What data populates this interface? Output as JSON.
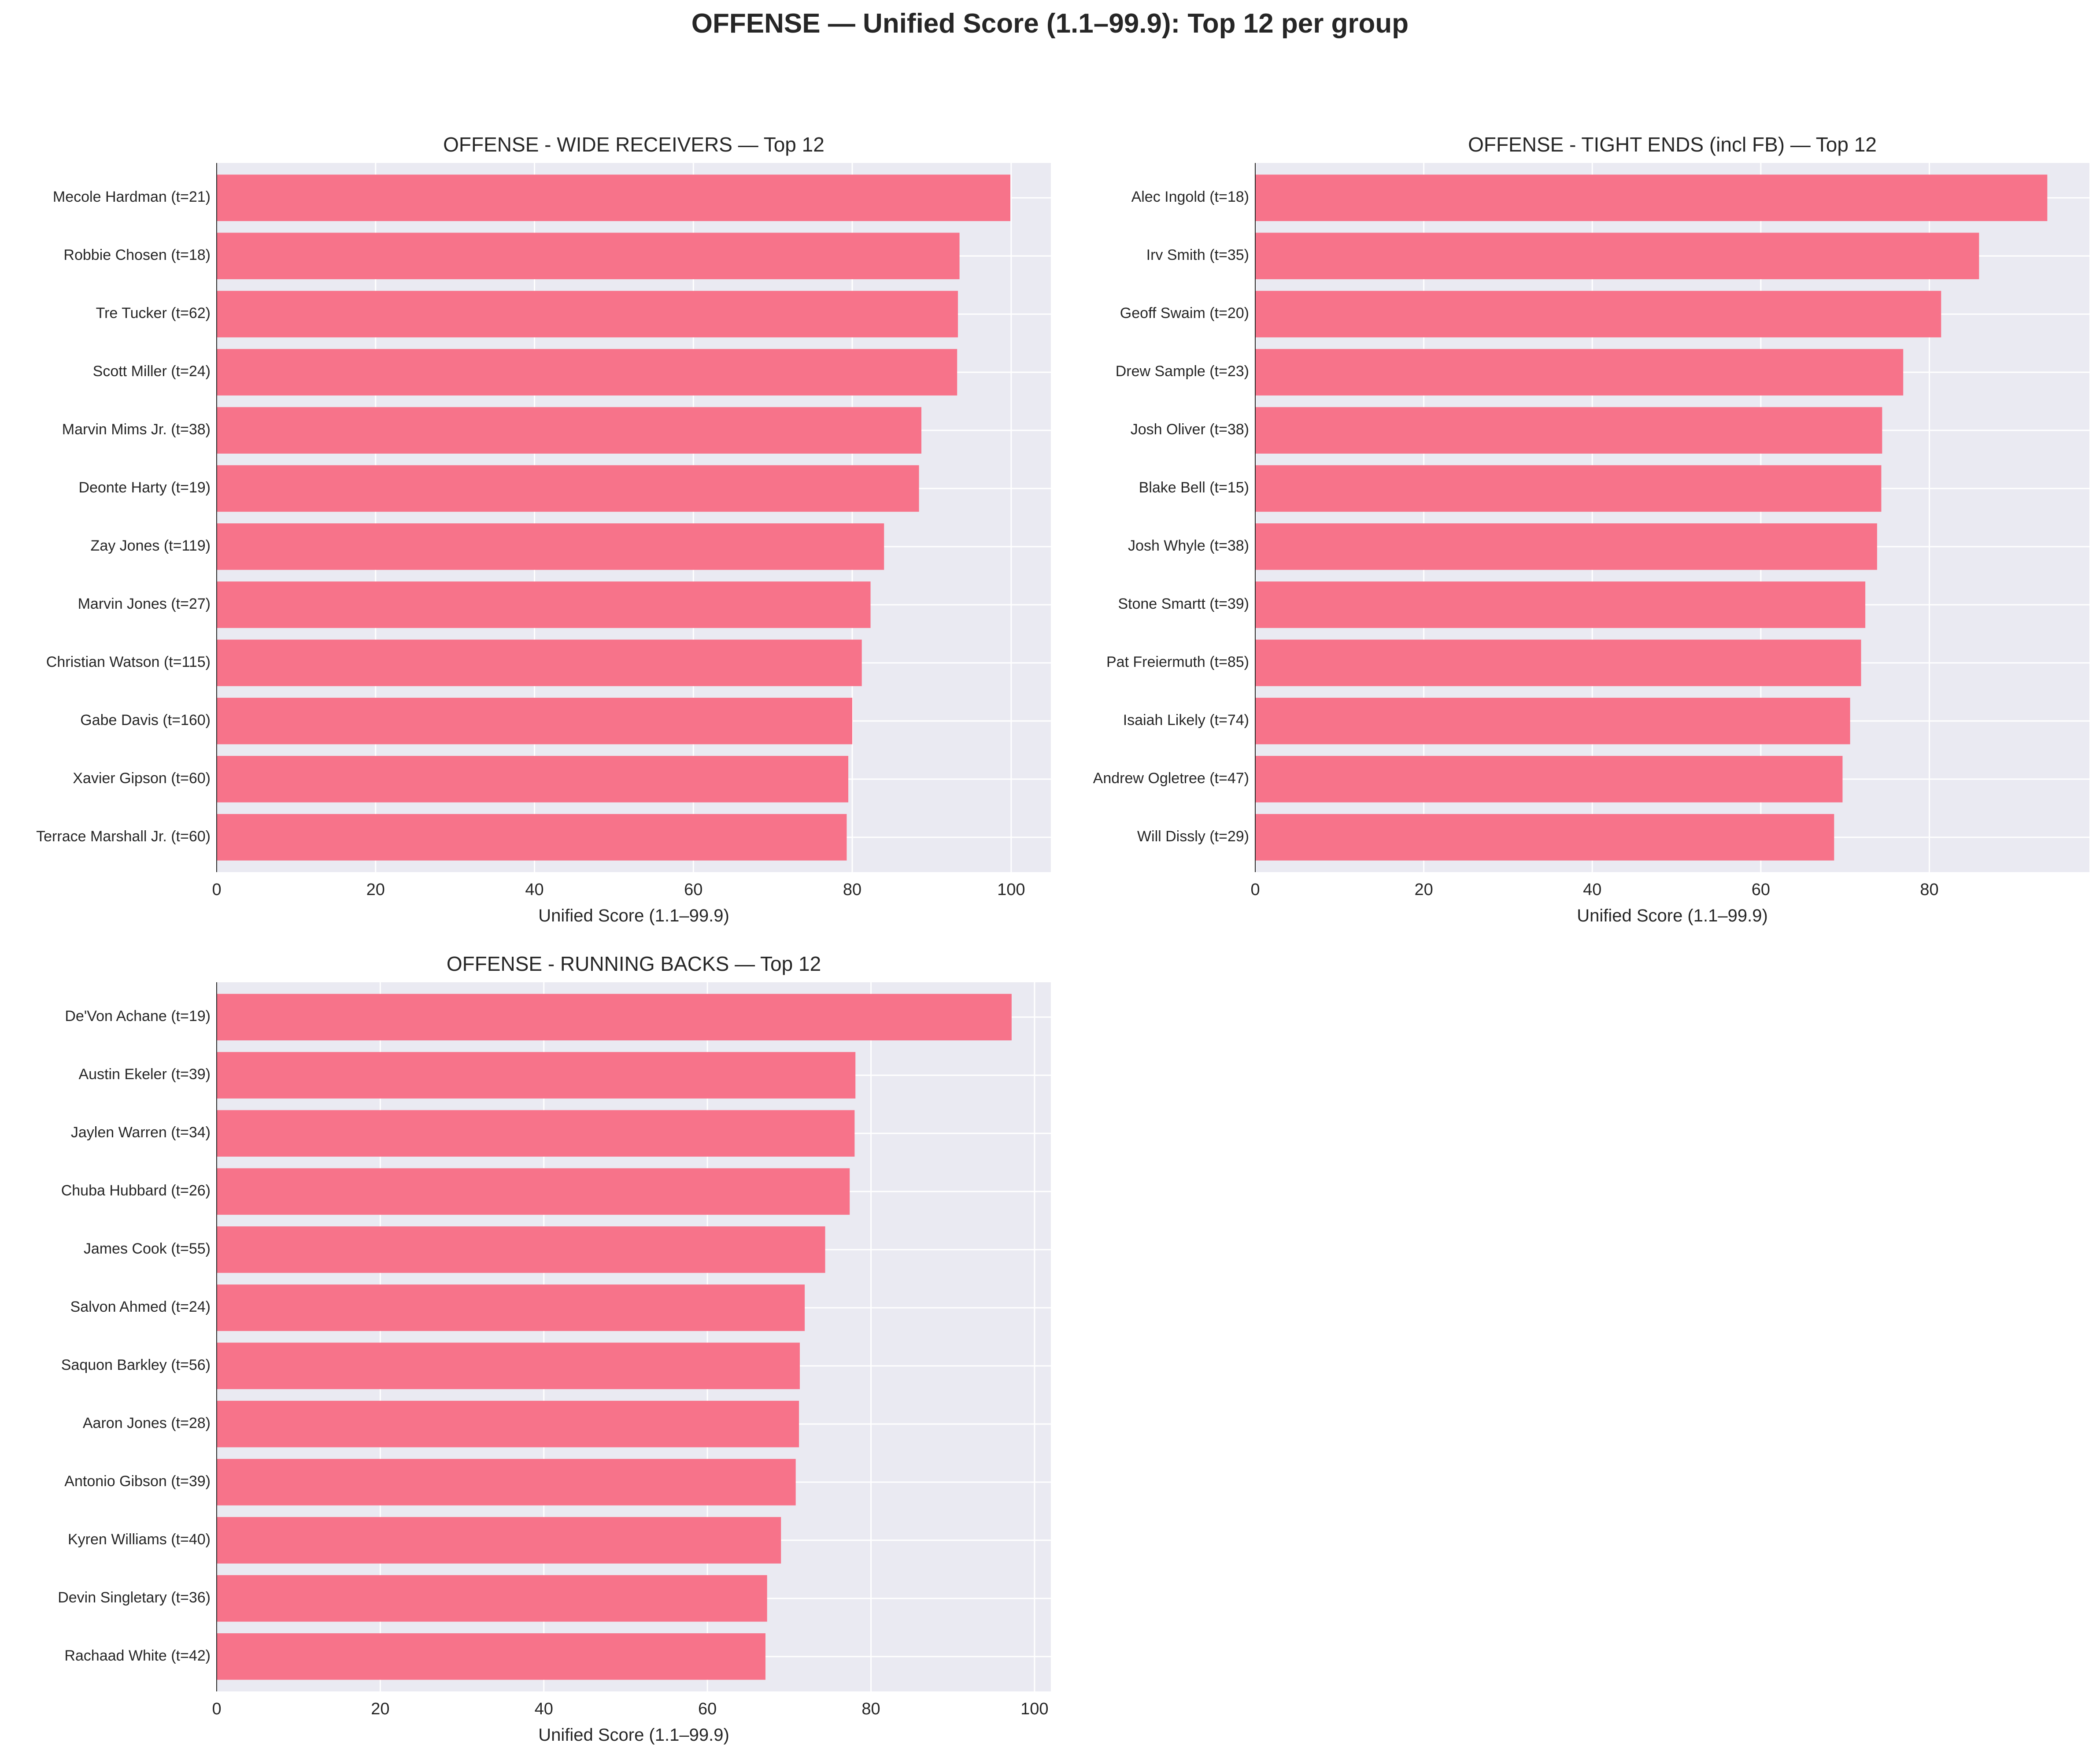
{
  "suptitle": "OFFENSE — Unified Score (1.1–99.9): Top 12 per group",
  "bar_color": "#f7738a",
  "plot_bg": "#eaeaf2",
  "chart_data": [
    {
      "type": "bar",
      "orientation": "horizontal",
      "title": "OFFENSE - WIDE RECEIVERS — Top 12",
      "xlabel": "Unified Score (1.1–99.9)",
      "xlim": [
        0,
        105
      ],
      "xticks": [
        0,
        20,
        40,
        60,
        80,
        100
      ],
      "categories": [
        "Mecole Hardman  (t=21)",
        "Robbie Chosen  (t=18)",
        "Tre Tucker  (t=62)",
        "Scott Miller  (t=24)",
        "Marvin Mims Jr.  (t=38)",
        "Deonte Harty  (t=19)",
        "Zay Jones  (t=119)",
        "Marvin Jones  (t=27)",
        "Christian Watson  (t=115)",
        "Gabe Davis  (t=160)",
        "Xavier Gipson  (t=60)",
        "Terrace Marshall Jr.  (t=60)"
      ],
      "values": [
        99.9,
        93.5,
        93.3,
        93.2,
        88.7,
        88.4,
        84.0,
        82.3,
        81.2,
        80.0,
        79.5,
        79.3
      ]
    },
    {
      "type": "bar",
      "orientation": "horizontal",
      "title": "OFFENSE - TIGHT ENDS (incl FB) — Top 12",
      "xlabel": "Unified Score (1.1–99.9)",
      "xlim": [
        0,
        99
      ],
      "xticks": [
        0,
        20,
        40,
        60,
        80
      ],
      "categories": [
        "Alec Ingold  (t=18)",
        "Irv Smith  (t=35)",
        "Geoff Swaim  (t=20)",
        "Drew Sample  (t=23)",
        "Josh Oliver  (t=38)",
        "Blake Bell  (t=15)",
        "Josh Whyle  (t=38)",
        "Stone Smartt  (t=39)",
        "Pat Freiermuth  (t=85)",
        "Isaiah Likely  (t=74)",
        "Andrew Ogletree  (t=47)",
        "Will Dissly  (t=29)"
      ],
      "values": [
        94.0,
        85.9,
        81.4,
        76.9,
        74.4,
        74.3,
        73.8,
        72.4,
        71.9,
        70.6,
        69.7,
        68.7
      ]
    },
    {
      "type": "bar",
      "orientation": "horizontal",
      "title": "OFFENSE - RUNNING BACKS — Top 12",
      "xlabel": "Unified Score (1.1–99.9)",
      "xlim": [
        0,
        102
      ],
      "xticks": [
        0,
        20,
        40,
        60,
        80,
        100
      ],
      "categories": [
        "De'Von Achane  (t=19)",
        "Austin Ekeler  (t=39)",
        "Jaylen Warren  (t=34)",
        "Chuba Hubbard  (t=26)",
        "James Cook  (t=55)",
        "Salvon Ahmed  (t=24)",
        "Saquon Barkley  (t=56)",
        "Aaron Jones  (t=28)",
        "Antonio Gibson  (t=39)",
        "Kyren Williams  (t=40)",
        "Devin Singletary  (t=36)",
        "Rachaad White  (t=42)"
      ],
      "values": [
        97.2,
        78.1,
        78.0,
        77.4,
        74.4,
        71.9,
        71.3,
        71.2,
        70.8,
        69.0,
        67.3,
        67.1
      ]
    }
  ]
}
